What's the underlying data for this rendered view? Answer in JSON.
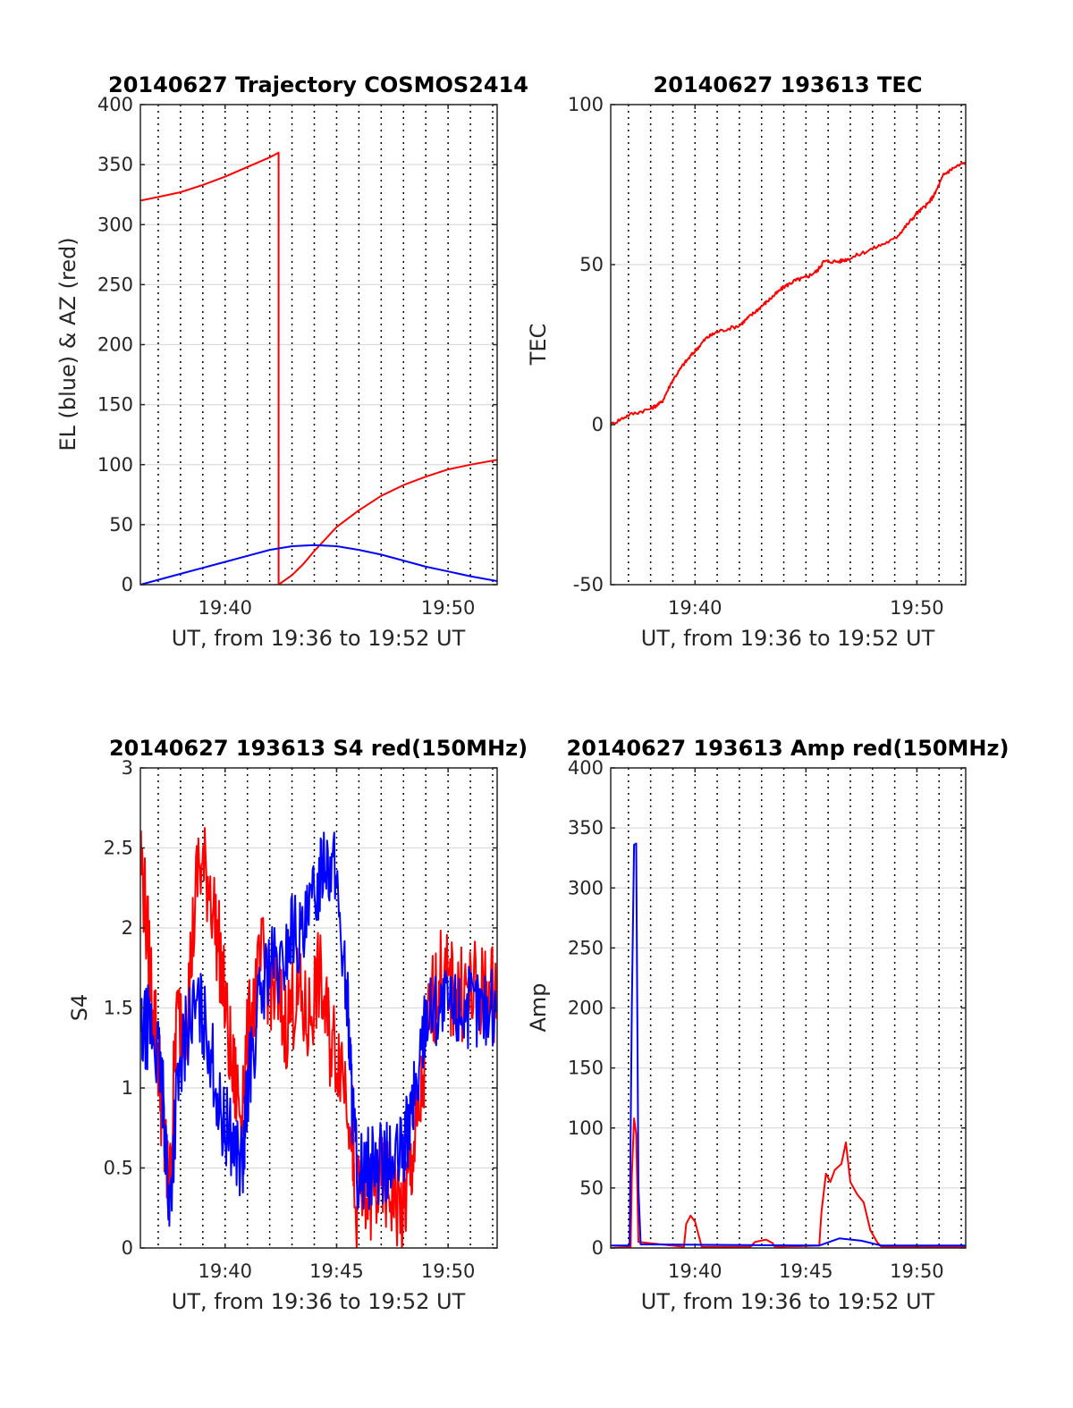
{
  "colors": {
    "el": "#0000ff",
    "az": "#ff0000",
    "tec": "#ff0000",
    "red": "#ff0000",
    "blue": "#0000ff",
    "grid": "#000000",
    "axis": "#262626"
  },
  "chart_data": [
    {
      "type": "line",
      "title": "20140627 Trajectory COSMOS2414",
      "xlabel": "UT, from 19:36 to 19:52 UT",
      "ylabel": "EL (blue) & AZ (red)",
      "xlim": [
        36.2,
        52.2
      ],
      "ylim": [
        0,
        400
      ],
      "xticks": [
        40,
        50
      ],
      "xticklabels": [
        "19:40",
        "19:50"
      ],
      "yticks": [
        0,
        50,
        100,
        150,
        200,
        250,
        300,
        350,
        400
      ],
      "grid": "on",
      "series": [
        {
          "key": "az",
          "color": "red",
          "points": [
            [
              36.2,
              320
            ],
            [
              37,
              323
            ],
            [
              38,
              327
            ],
            [
              39,
              333
            ],
            [
              40,
              340
            ],
            [
              41,
              348
            ],
            [
              42,
              356
            ],
            [
              42.4,
              360
            ],
            [
              42.4,
              0
            ],
            [
              43,
              8
            ],
            [
              43.5,
              17
            ],
            [
              44,
              28
            ],
            [
              44.5,
              38
            ],
            [
              45,
              48
            ],
            [
              46,
              62
            ],
            [
              47,
              74
            ],
            [
              48,
              83
            ],
            [
              49,
              90
            ],
            [
              50,
              96
            ],
            [
              51,
              100
            ],
            [
              52.2,
              104
            ]
          ]
        },
        {
          "key": "el",
          "color": "blue",
          "points": [
            [
              36.2,
              0
            ],
            [
              37,
              4
            ],
            [
              38,
              9
            ],
            [
              39,
              14
            ],
            [
              40,
              19
            ],
            [
              41,
              24
            ],
            [
              42,
              29
            ],
            [
              43,
              32
            ],
            [
              44,
              33
            ],
            [
              45,
              32
            ],
            [
              46,
              29
            ],
            [
              47,
              25
            ],
            [
              48,
              20
            ],
            [
              49,
              15
            ],
            [
              50,
              11
            ],
            [
              51,
              7
            ],
            [
              52.2,
              3
            ]
          ]
        }
      ]
    },
    {
      "type": "line",
      "title": "20140627 193613 TEC",
      "xlabel": "UT, from 19:36 to 19:52 UT",
      "ylabel": "TEC",
      "xlim": [
        36.2,
        52.2
      ],
      "ylim": [
        -50,
        100
      ],
      "xticks": [
        40,
        50
      ],
      "xticklabels": [
        "19:40",
        "19:50"
      ],
      "yticks": [
        -50,
        0,
        50,
        100
      ],
      "grid": "on",
      "series": [
        {
          "key": "tec",
          "color": "red",
          "noise": 0.8,
          "points": [
            [
              36.2,
              0
            ],
            [
              37,
              3
            ],
            [
              38,
              5
            ],
            [
              38.5,
              7
            ],
            [
              39,
              14
            ],
            [
              39.5,
              19
            ],
            [
              40,
              23
            ],
            [
              40.5,
              27
            ],
            [
              41,
              29
            ],
            [
              42,
              31
            ],
            [
              42.5,
              34
            ],
            [
              43,
              37
            ],
            [
              43.5,
              40
            ],
            [
              44,
              43
            ],
            [
              44.5,
              45
            ],
            [
              45,
              46
            ],
            [
              45.5,
              48
            ],
            [
              45.8,
              51
            ],
            [
              46.5,
              51
            ],
            [
              47,
              52
            ],
            [
              48,
              55
            ],
            [
              49,
              58
            ],
            [
              49.5,
              62
            ],
            [
              50,
              66
            ],
            [
              50.5,
              69
            ],
            [
              50.8,
              72
            ],
            [
              51.2,
              78
            ],
            [
              51.6,
              80
            ],
            [
              52.2,
              82
            ]
          ]
        }
      ]
    },
    {
      "type": "line",
      "title": "20140627 193613 S4 red(150MHz)",
      "xlabel": "UT, from 19:36 to 19:52 UT",
      "ylabel": "S4",
      "xlim": [
        36.2,
        52.2
      ],
      "ylim": [
        0,
        3
      ],
      "xticks": [
        40,
        45,
        50
      ],
      "xticklabels": [
        "19:40",
        "19:45",
        "19:50"
      ],
      "yticks": [
        0,
        0.5,
        1,
        1.5,
        2,
        2.5,
        3
      ],
      "yticklabels": [
        "0",
        "0.5",
        "1",
        "1.5",
        "2",
        "2.5",
        "3"
      ],
      "grid": "on",
      "series": [
        {
          "key": "s4_red",
          "color": "red",
          "noise": 0.6,
          "points": [
            [
              36.2,
              2.5
            ],
            [
              36.6,
              1.8
            ],
            [
              37,
              1.2
            ],
            [
              37.3,
              0.6
            ],
            [
              37.5,
              0.3
            ],
            [
              37.8,
              1.4
            ],
            [
              38.3,
              1.5
            ],
            [
              38.8,
              2.4
            ],
            [
              39.3,
              2.3
            ],
            [
              39.8,
              1.8
            ],
            [
              40.3,
              1.1
            ],
            [
              40.7,
              0.9
            ],
            [
              41.2,
              1.5
            ],
            [
              41.7,
              1.8
            ],
            [
              42.2,
              1.6
            ],
            [
              42.7,
              1.4
            ],
            [
              43.2,
              1.6
            ],
            [
              43.7,
              1.4
            ],
            [
              44.2,
              1.7
            ],
            [
              44.7,
              1.3
            ],
            [
              45.2,
              1.2
            ],
            [
              45.7,
              0.8
            ],
            [
              45.8,
              0.3
            ],
            [
              46.5,
              0.3
            ],
            [
              47,
              0.4
            ],
            [
              47.5,
              0.35
            ],
            [
              48,
              0.2
            ],
            [
              48.3,
              0.5
            ],
            [
              48.7,
              0.8
            ],
            [
              49.2,
              1.5
            ],
            [
              49.7,
              1.7
            ],
            [
              50.2,
              1.6
            ],
            [
              50.7,
              1.6
            ],
            [
              51.2,
              1.6
            ],
            [
              51.7,
              1.6
            ],
            [
              52.2,
              1.6
            ]
          ]
        },
        {
          "key": "s4_blue",
          "color": "blue",
          "noise": 0.5,
          "points": [
            [
              36.2,
              1.3
            ],
            [
              36.6,
              1.4
            ],
            [
              37,
              1.2
            ],
            [
              37.3,
              0.8
            ],
            [
              37.5,
              0.2
            ],
            [
              37.8,
              0.9
            ],
            [
              38.3,
              1.4
            ],
            [
              38.8,
              1.5
            ],
            [
              39.3,
              1.3
            ],
            [
              39.8,
              0.8
            ],
            [
              40.3,
              0.7
            ],
            [
              40.8,
              0.5
            ],
            [
              41,
              1.0
            ],
            [
              41.5,
              1.5
            ],
            [
              42,
              1.8
            ],
            [
              42.5,
              1.7
            ],
            [
              43,
              2.0
            ],
            [
              43.5,
              1.9
            ],
            [
              44,
              2.2
            ],
            [
              44.5,
              2.5
            ],
            [
              45,
              2.3
            ],
            [
              45.5,
              1.5
            ],
            [
              45.7,
              0.9
            ],
            [
              45.9,
              0.5
            ],
            [
              46.5,
              0.5
            ],
            [
              47,
              0.55
            ],
            [
              47.5,
              0.5
            ],
            [
              48,
              0.6
            ],
            [
              48.3,
              0.8
            ],
            [
              48.7,
              1.1
            ],
            [
              49,
              1.5
            ],
            [
              49.5,
              1.5
            ],
            [
              50,
              1.5
            ],
            [
              50.5,
              1.5
            ],
            [
              51,
              1.5
            ],
            [
              51.5,
              1.5
            ],
            [
              52.2,
              1.5
            ]
          ]
        }
      ]
    },
    {
      "type": "line",
      "title": "20140627 193613 Amp red(150MHz)",
      "xlabel": "UT, from 19:36 to 19:52 UT",
      "ylabel": "Amp",
      "xlim": [
        36.2,
        52.2
      ],
      "ylim": [
        0,
        400
      ],
      "xticks": [
        40,
        45,
        50
      ],
      "xticklabels": [
        "19:40",
        "19:45",
        "19:50"
      ],
      "yticks": [
        0,
        50,
        100,
        150,
        200,
        250,
        300,
        350,
        400
      ],
      "grid": "on",
      "series": [
        {
          "key": "amp_red",
          "color": "red",
          "points": [
            [
              36.2,
              0
            ],
            [
              37.1,
              1
            ],
            [
              37.15,
              60
            ],
            [
              37.25,
              108
            ],
            [
              37.35,
              95
            ],
            [
              37.45,
              5
            ],
            [
              39.5,
              1
            ],
            [
              39.6,
              20
            ],
            [
              39.8,
              27
            ],
            [
              40,
              22
            ],
            [
              40.2,
              8
            ],
            [
              40.3,
              1
            ],
            [
              42.5,
              1
            ],
            [
              42.7,
              5
            ],
            [
              43.2,
              7
            ],
            [
              43.5,
              4
            ],
            [
              43.6,
              1
            ],
            [
              45.6,
              2
            ],
            [
              45.7,
              30
            ],
            [
              45.9,
              62
            ],
            [
              46.1,
              55
            ],
            [
              46.3,
              65
            ],
            [
              46.6,
              70
            ],
            [
              46.8,
              88
            ],
            [
              47,
              55
            ],
            [
              47.3,
              45
            ],
            [
              47.6,
              38
            ],
            [
              47.9,
              15
            ],
            [
              48.2,
              5
            ],
            [
              48.4,
              1
            ],
            [
              52.2,
              1
            ]
          ]
        },
        {
          "key": "amp_blue",
          "color": "blue",
          "points": [
            [
              36.2,
              2
            ],
            [
              37.05,
              2
            ],
            [
              37.15,
              200
            ],
            [
              37.25,
              336
            ],
            [
              37.35,
              337
            ],
            [
              37.45,
              50
            ],
            [
              37.55,
              3
            ],
            [
              45.6,
              2
            ],
            [
              46.5,
              8
            ],
            [
              47.5,
              6
            ],
            [
              48.4,
              2
            ],
            [
              52.2,
              2
            ]
          ]
        }
      ]
    }
  ]
}
